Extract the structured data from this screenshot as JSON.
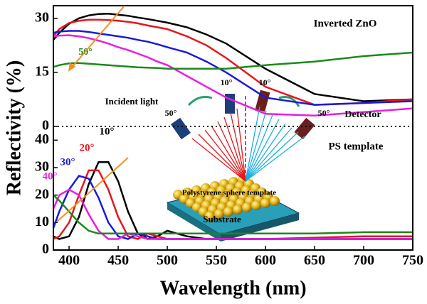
{
  "chart_data": [
    {
      "type": "line",
      "ylabel": "Reflectivity (%)",
      "x": [
        384,
        390,
        400,
        410,
        420,
        430,
        440,
        450,
        460,
        470,
        480,
        490,
        500,
        520,
        540,
        560,
        600,
        650,
        700,
        750
      ],
      "xlim": [
        384,
        750
      ],
      "ylim": [
        0,
        33.5
      ],
      "yticks": [
        0,
        15,
        30
      ],
      "series": [
        {
          "color": "#000000",
          "values": [
            24,
            26,
            28.5,
            30,
            30.8,
            31.2,
            31.3,
            31,
            30.7,
            30.2,
            29.8,
            29.3,
            28.8,
            27.5,
            25.5,
            23,
            16,
            9,
            7,
            7.5
          ]
        },
        {
          "color": "#e8161b",
          "values": [
            25,
            27,
            28.7,
            29.3,
            29.6,
            29.6,
            29.5,
            29.3,
            29,
            28.6,
            28,
            27.5,
            27,
            25,
            22.5,
            19,
            11,
            6,
            6.5,
            7.5
          ]
        },
        {
          "color": "#1a1adb",
          "values": [
            26,
            26.3,
            26.5,
            26.5,
            26.2,
            25.8,
            25.4,
            25,
            24.6,
            24,
            23.5,
            22.8,
            22,
            20.5,
            18,
            15,
            8,
            6,
            6.5,
            7
          ]
        },
        {
          "color": "#e81ee0",
          "values": [
            25,
            25.2,
            25.3,
            25,
            24.5,
            23.8,
            23,
            22,
            21.2,
            20.2,
            19.2,
            18,
            17,
            14,
            11,
            8,
            3.5,
            3,
            4,
            5
          ]
        },
        {
          "color": "#1a8a1a",
          "values": [
            16.5,
            17,
            17.5,
            17.6,
            17.4,
            17.2,
            17,
            16.8,
            16.6,
            16.4,
            16.3,
            16.2,
            16,
            16,
            16,
            16,
            17,
            18,
            19.5,
            20.5
          ]
        }
      ],
      "annotations": [
        {
          "text": "Inverted ZnO",
          "color": "#000000"
        },
        {
          "text": "50°",
          "color": "#1a8a1a"
        }
      ]
    },
    {
      "type": "line",
      "xlabel": "Wavelength (nm)",
      "x": [
        384,
        390,
        400,
        410,
        420,
        430,
        440,
        450,
        460,
        470,
        480,
        490,
        500,
        520,
        540,
        560,
        600,
        650,
        700,
        750
      ],
      "xlim": [
        384,
        750
      ],
      "xticks": [
        400,
        450,
        500,
        550,
        600,
        650,
        700,
        750
      ],
      "ylim": [
        0,
        45
      ],
      "yticks": [
        0,
        10,
        20,
        30,
        40
      ],
      "series": [
        {
          "color": "#000000",
          "values": [
            5,
            4,
            5,
            12,
            24,
            32,
            32,
            25,
            14,
            6,
            4,
            5,
            7,
            5,
            4,
            4,
            4,
            4,
            4,
            4
          ]
        },
        {
          "color": "#e8161b",
          "values": [
            4,
            5,
            10,
            20,
            29,
            29,
            22,
            12,
            5,
            4,
            6,
            5,
            4,
            4,
            4,
            4,
            4,
            4.5,
            5,
            5
          ]
        },
        {
          "color": "#1a1adb",
          "values": [
            8,
            14,
            22,
            27,
            26,
            19,
            10,
            5,
            4,
            6,
            5,
            4,
            4,
            4,
            4,
            4,
            4,
            4,
            4,
            4
          ]
        },
        {
          "color": "#e81ee0",
          "values": [
            15,
            20,
            22,
            20,
            13,
            7,
            4,
            4,
            6,
            5,
            4,
            4,
            4,
            4,
            4,
            4,
            4,
            4,
            4,
            4
          ]
        },
        {
          "color": "#1a8a1a",
          "values": [
            20,
            18,
            14,
            10,
            7,
            6,
            6,
            6,
            6,
            6,
            6,
            6,
            6,
            6,
            6,
            6,
            6,
            6,
            6.5,
            6.5
          ]
        }
      ],
      "annotations": [
        {
          "text": "PS template",
          "color": "#000000"
        },
        {
          "text": "10°",
          "color": "#000000"
        },
        {
          "text": "20°",
          "color": "#e8161b"
        },
        {
          "text": "30°",
          "color": "#1a1adb"
        },
        {
          "text": "40°",
          "color": "#e81ee0"
        }
      ]
    }
  ],
  "inset": {
    "labels": [
      "Incident light",
      "10°",
      "10°",
      "50°",
      "50°",
      "Detector",
      "Polystyrene sphere template",
      "Substrate"
    ]
  }
}
